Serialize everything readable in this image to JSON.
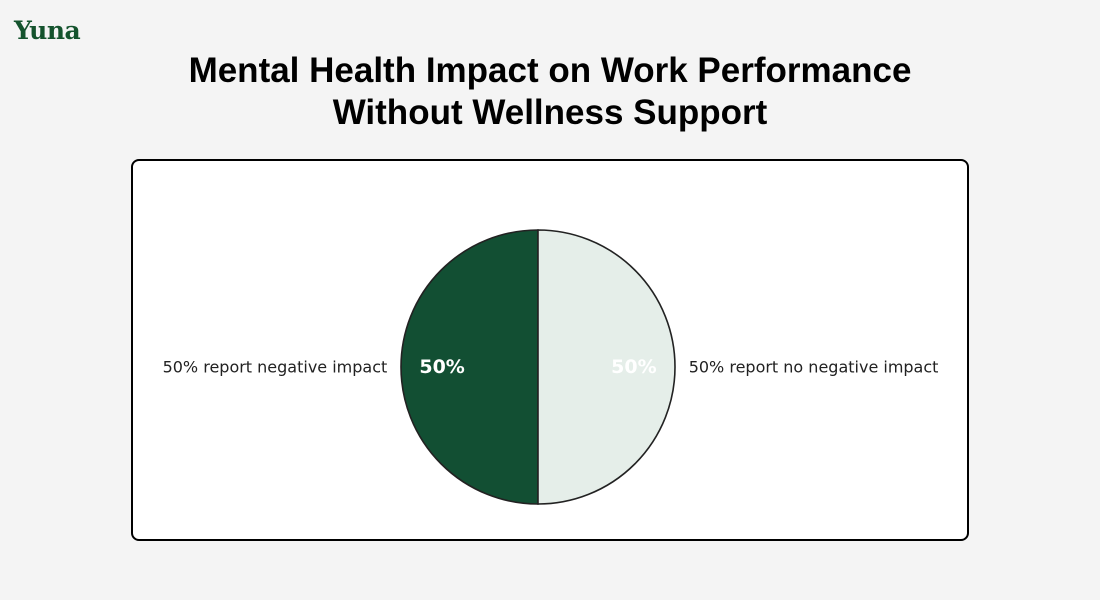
{
  "brand": {
    "logo_text": "Yuna"
  },
  "header": {
    "title_line1": "Mental Health Impact on Work Performance",
    "title_line2": "Without Wellness Support"
  },
  "colors": {
    "background": "#f4f4f4",
    "brand_green": "#14532d",
    "dark_slice": "#124f33",
    "light_slice": "#e5eee9"
  },
  "chart_data": {
    "type": "pie",
    "title": "Mental Health Impact on Work Performance Without Wellness Support",
    "slices": [
      {
        "label": "50% report negative impact",
        "value": 50,
        "pct_label": "50%",
        "color": "#124f33",
        "pct_text_color": "#ffffff"
      },
      {
        "label": "50% report no negative impact",
        "value": 50,
        "pct_label": "50%",
        "color": "#e5eee9",
        "pct_text_color": "#ffffff"
      }
    ]
  }
}
